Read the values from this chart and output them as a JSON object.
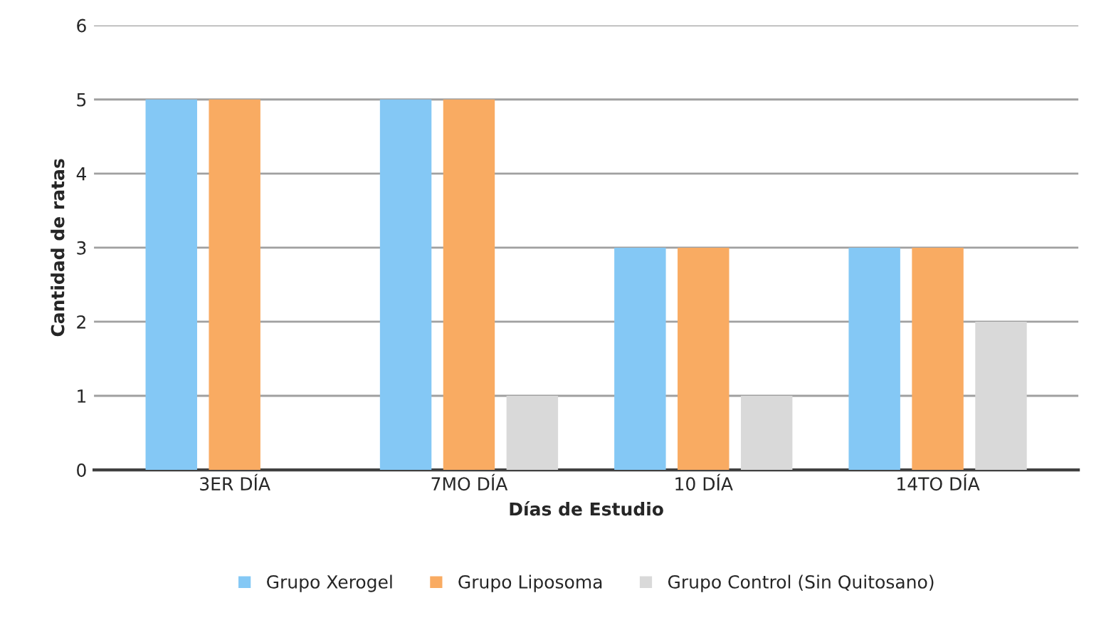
{
  "chart_data": {
    "type": "bar",
    "xlabel": "Días de Estudio",
    "ylabel": "Cantidad de ratas",
    "categories": [
      "3ER DÍA",
      "7MO DÍA",
      "10 DÍA",
      "14TO DÍA"
    ],
    "series": [
      {
        "name": "Grupo Xerogel",
        "color": "#84c8f5",
        "values": [
          5,
          5,
          3,
          3
        ]
      },
      {
        "name": "Grupo Liposoma",
        "color": "#f9ab62",
        "values": [
          5,
          5,
          3,
          3
        ]
      },
      {
        "name": "Grupo Control (Sin Quitosano)",
        "color": "#d9d9d9",
        "values": [
          null,
          1,
          1,
          2
        ]
      }
    ],
    "ylim": [
      0,
      6
    ],
    "yticks": [
      0,
      1,
      2,
      3,
      4,
      5,
      6
    ],
    "grid": "y",
    "legend": "bottom"
  }
}
